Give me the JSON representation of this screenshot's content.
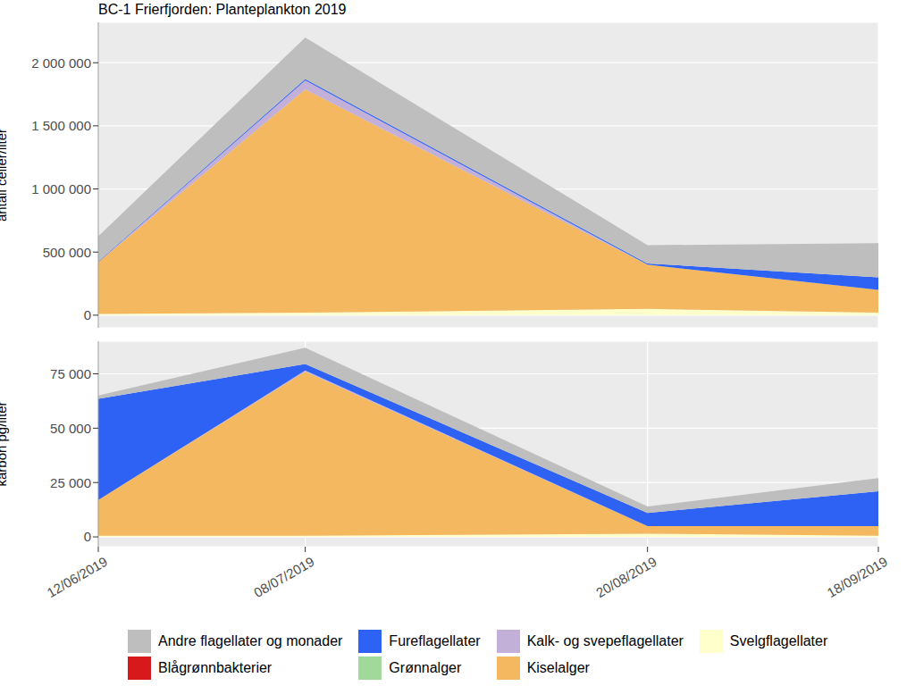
{
  "chart_data": [
    {
      "type": "area",
      "title": "BC-1 Frierfjorden: Planteplankton 2019",
      "ylabel": "antall celler/liter",
      "stacked": true,
      "grid": true,
      "tick_labels": "y",
      "x": [
        "12/06/2019",
        "08/07/2019",
        "20/08/2019",
        "18/09/2019"
      ],
      "xlim": [
        "12/06/2019",
        "18/09/2019"
      ],
      "xticks": [
        "12/06/2019",
        "08/07/2019",
        "20/08/2019",
        "18/09/2019"
      ],
      "ylim": [
        -100000,
        2320000
      ],
      "yticks": [
        0,
        {
          "value": 500000,
          "label": "500 000"
        },
        {
          "value": 1000000,
          "label": "1 000 000"
        },
        {
          "value": 1500000,
          "label": "1 500 000"
        },
        {
          "value": 2000000,
          "label": "2 000 000"
        }
      ],
      "series": [
        {
          "name": "Andre flagellater og monader",
          "color": "#bebebe",
          "values": [
            200000,
            330000,
            145000,
            270000
          ]
        },
        {
          "name": "Blågrønnbakterier",
          "color": "#d7191c",
          "values": [
            0,
            0,
            0,
            0
          ]
        },
        {
          "name": "Fureflagellater",
          "color": "#2e62f5",
          "values": [
            5000,
            10000,
            10000,
            100000
          ]
        },
        {
          "name": "Grønnalger",
          "color": "#a1d99b",
          "values": [
            0,
            0,
            0,
            0
          ]
        },
        {
          "name": "Kalk- og svepeflagellater",
          "color": "#c3b0d9",
          "values": [
            0,
            70000,
            0,
            0
          ]
        },
        {
          "name": "Kiselalger",
          "color": "#f4b860",
          "values": [
            410000,
            1770000,
            350000,
            180000
          ]
        },
        {
          "name": "Svelgflagellater",
          "color": "#ffffcc",
          "values": [
            10000,
            20000,
            50000,
            20000
          ]
        }
      ]
    },
    {
      "type": "area",
      "ylabel": "karbon pg/liter",
      "stacked": true,
      "grid": true,
      "legend": "bottom",
      "x": [
        "12/06/2019",
        "08/07/2019",
        "20/08/2019",
        "18/09/2019"
      ],
      "xlim": [
        "12/06/2019",
        "18/09/2019"
      ],
      "xticks": [
        "12/06/2019",
        "08/07/2019",
        "20/08/2019",
        "18/09/2019"
      ],
      "ylim": [
        -4500,
        90000
      ],
      "yticks": [
        0,
        {
          "value": 25000,
          "label": "25 000"
        },
        {
          "value": 50000,
          "label": "50 000"
        },
        {
          "value": 75000,
          "label": "75 000"
        }
      ],
      "series": [
        {
          "name": "Andre flagellater og monader",
          "color": "#bebebe",
          "values": [
            1500,
            7500,
            3000,
            6000
          ]
        },
        {
          "name": "Blågrønnbakterier",
          "color": "#d7191c",
          "values": [
            0,
            0,
            0,
            0
          ]
        },
        {
          "name": "Fureflagellater",
          "color": "#2e62f5",
          "values": [
            46500,
            3000,
            6000,
            16000
          ]
        },
        {
          "name": "Grønnalger",
          "color": "#a1d99b",
          "values": [
            0,
            0,
            0,
            0
          ]
        },
        {
          "name": "Kalk- og svepeflagellater",
          "color": "#c3b0d9",
          "values": [
            0,
            500,
            0,
            0
          ]
        },
        {
          "name": "Kiselalger",
          "color": "#f4b860",
          "values": [
            16500,
            75500,
            3500,
            4500
          ]
        },
        {
          "name": "Svelgflagellater",
          "color": "#ffffcc",
          "values": [
            500,
            500,
            1500,
            500
          ]
        }
      ]
    }
  ]
}
